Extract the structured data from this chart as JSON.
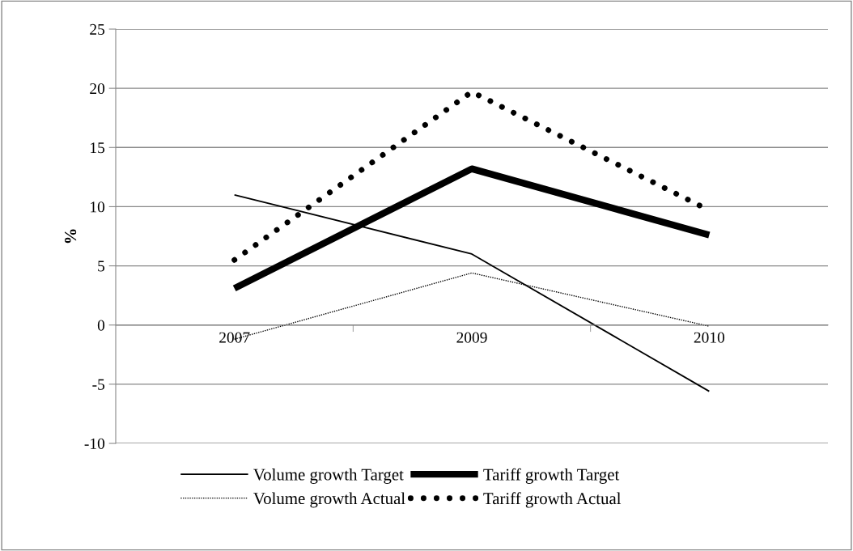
{
  "chart_data": {
    "type": "line",
    "ylabel": "%",
    "categories": [
      "2007",
      "2009",
      "2010"
    ],
    "series": [
      {
        "name": "Volume growth Target",
        "color": "#000000",
        "line_style": "solid",
        "values": [
          11.0,
          6.0,
          -5.6
        ]
      },
      {
        "name": "Volume growth Actual",
        "color": "#000000",
        "line_style": "dotted",
        "values": [
          -1.2,
          4.4,
          -0.1
        ]
      },
      {
        "name": "Tariff growth Target",
        "color": "#000000",
        "line_style": "solid",
        "values": [
          3.1,
          13.2,
          7.6
        ]
      },
      {
        "name": "Tariff growth Actual",
        "color": "#000000",
        "line_style": "dotted",
        "values": [
          5.5,
          19.7,
          9.7
        ]
      }
    ],
    "ylim": [
      -10,
      25
    ],
    "yticks": [
      -10,
      -5,
      0,
      5,
      10,
      15,
      20,
      25
    ],
    "grid": "y",
    "legend": "bottom",
    "marker": "none"
  }
}
